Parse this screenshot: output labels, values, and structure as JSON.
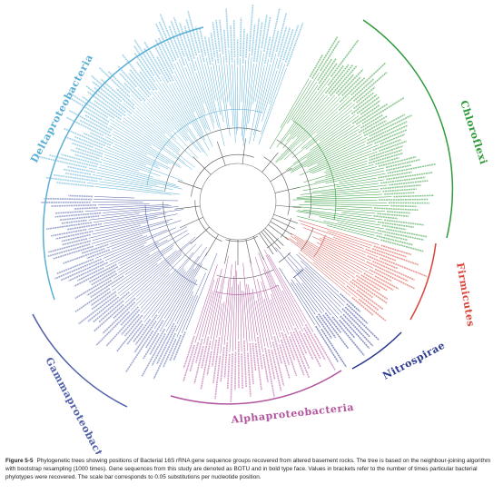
{
  "figure": {
    "label": "Figure 5-5",
    "caption": "Phylogenetic trees showing positions of Bacterial 16S rRNA gene sequence groups recovered from altered basement rocks. The tree is based on the neighbour-joining algorithm with bootstrap resampling (1000 times). Gene sequences from this study are denoted as BOTU and in bold type face. Values in brackets refer to the number of times particular bacterial phylotypes were recovered. The scale bar corresponds to 0.05 substitutions per nucleotide position."
  },
  "clades": [
    {
      "name": "Deltaproteobacteria",
      "color": "#5aaed6"
    },
    {
      "name": "Chloroflexi",
      "color": "#2f9a3a"
    },
    {
      "name": "Firmicutes",
      "color": "#d9443a"
    },
    {
      "name": "Nitrospirae",
      "color": "#2a3890"
    },
    {
      "name": "Alphaproteobacteria",
      "color": "#b2559e"
    },
    {
      "name": "Gammaproteobacteria",
      "color": "#5060a8"
    }
  ],
  "colors": {
    "branch": "#555555",
    "central": "#777777"
  }
}
